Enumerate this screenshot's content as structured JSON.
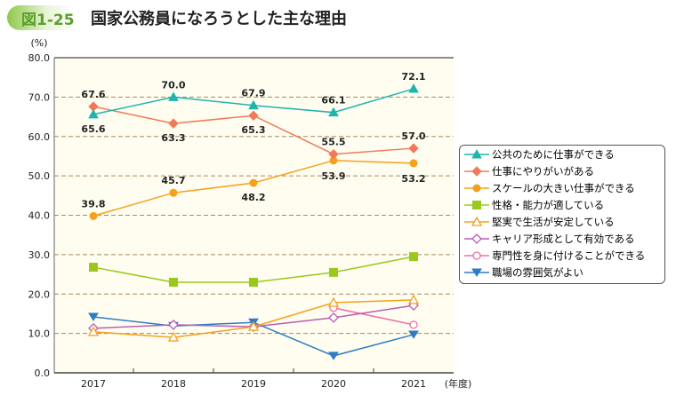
{
  "header": {
    "figure_label": "図1-25",
    "title": "国家公務員になろうとした主な理由"
  },
  "chart_data": {
    "type": "line",
    "title": "国家公務員になろうとした主な理由",
    "ylabel": "(%)",
    "xlabel": "(年度)",
    "ylim": [
      0,
      80
    ],
    "yticks": [
      "0.0",
      "10.0",
      "20.0",
      "30.0",
      "40.0",
      "50.0",
      "60.0",
      "70.0",
      "80.0"
    ],
    "categories": [
      "2017",
      "2018",
      "2019",
      "2020",
      "2021"
    ],
    "grid": true,
    "legend": "right",
    "series": [
      {
        "name": "公共のために仕事ができる",
        "values": [
          65.6,
          70.0,
          67.9,
          66.1,
          72.1
        ],
        "labels": [
          "65.6",
          "70.0",
          "67.9",
          "66.1",
          "72.1"
        ],
        "color": "#1fb5ad",
        "marker": "triangle"
      },
      {
        "name": "仕事にやりがいがある",
        "values": [
          67.6,
          63.3,
          65.3,
          55.5,
          57.0
        ],
        "labels": [
          "67.6",
          "63.3",
          "65.3",
          "55.5",
          "57.0"
        ],
        "color": "#f07a5a",
        "marker": "diamond"
      },
      {
        "name": "スケールの大きい仕事ができる",
        "values": [
          39.8,
          45.7,
          48.2,
          53.9,
          53.2
        ],
        "labels": [
          "39.8",
          "45.7",
          "48.2",
          "53.9",
          "53.2"
        ],
        "color": "#f5a11c",
        "marker": "circle"
      },
      {
        "name": "性格・能力が適している",
        "values": [
          26.8,
          23.0,
          23.0,
          25.5,
          29.5
        ],
        "color": "#9ac81e",
        "marker": "square"
      },
      {
        "name": "堅実で生活が安定している",
        "values": [
          10.4,
          9.0,
          11.7,
          17.8,
          18.5
        ],
        "color": "#f5a11c",
        "marker": "triangle-open"
      },
      {
        "name": "キャリア形成として有効である",
        "values": [
          11.3,
          12.2,
          11.7,
          14.0,
          17.1
        ],
        "color": "#b65fb0",
        "marker": "diamond-open"
      },
      {
        "name": "専門性を身に付けることができる",
        "values": [
          null,
          null,
          null,
          16.5,
          12.2
        ],
        "color": "#ee6fa8",
        "marker": "circle-open"
      },
      {
        "name": "職場の雰囲気がよい",
        "values": [
          14.2,
          11.9,
          12.8,
          4.3,
          9.7
        ],
        "color": "#2f7cc4",
        "marker": "triangle-down"
      }
    ]
  }
}
